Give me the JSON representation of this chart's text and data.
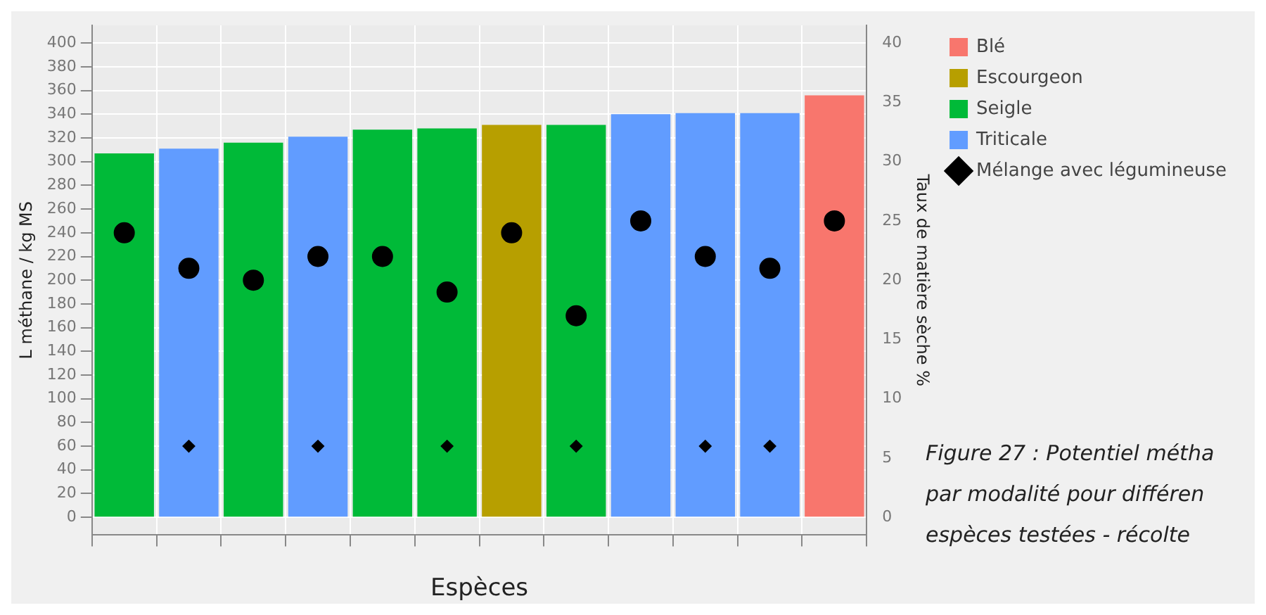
{
  "chart_data": {
    "type": "bar",
    "xlabel": "Espèces",
    "ylabel": "L méthane / kg MS",
    "y2label": "Taux de matière sèche %",
    "categories": [
      null,
      null,
      null,
      null,
      null,
      null,
      null,
      null,
      null,
      null,
      null,
      null
    ],
    "series": [
      {
        "name": "Blé",
        "color": "#f8766d",
        "values": [
          null,
          null,
          null,
          null,
          null,
          null,
          null,
          null,
          null,
          null,
          null,
          356
        ]
      },
      {
        "name": "Escourgeon",
        "color": "#b79f00",
        "values": [
          null,
          null,
          null,
          null,
          null,
          null,
          331,
          null,
          null,
          null,
          null,
          null
        ]
      },
      {
        "name": "Seigle",
        "color": "#00ba38",
        "values": [
          307,
          null,
          316,
          null,
          327,
          328,
          null,
          331,
          null,
          null,
          null,
          null
        ]
      },
      {
        "name": "Triticale",
        "color": "#619cff",
        "values": [
          null,
          311,
          null,
          321,
          null,
          null,
          null,
          null,
          340,
          341,
          341,
          null
        ]
      },
      {
        "type": "scatter",
        "axis": "y2",
        "color": "#000000",
        "marker": "circle",
        "values": [
          24,
          21,
          20,
          22,
          22,
          19,
          24,
          17,
          25,
          22,
          21,
          25
        ]
      },
      {
        "type": "scatter",
        "name": "Mélange avec légumineuse",
        "color": "#000000",
        "marker": "diamond",
        "values": [
          null,
          60,
          null,
          60,
          null,
          60,
          null,
          60,
          null,
          60,
          60,
          null
        ]
      }
    ],
    "ylim": [
      -15,
      415
    ],
    "yticks": [
      0,
      20,
      40,
      60,
      80,
      100,
      120,
      140,
      160,
      180,
      200,
      220,
      240,
      260,
      280,
      300,
      320,
      340,
      360,
      380,
      400
    ],
    "y2lim": [
      -1.5,
      41.5
    ],
    "y2ticks": [
      0,
      5,
      10,
      15,
      20,
      25,
      30,
      35,
      40
    ],
    "grid": true,
    "legend": "top right",
    "annotations": [
      "Figure 27 : Potentiel métha",
      "par modalité pour différen",
      "espèces testées - récolte"
    ]
  }
}
